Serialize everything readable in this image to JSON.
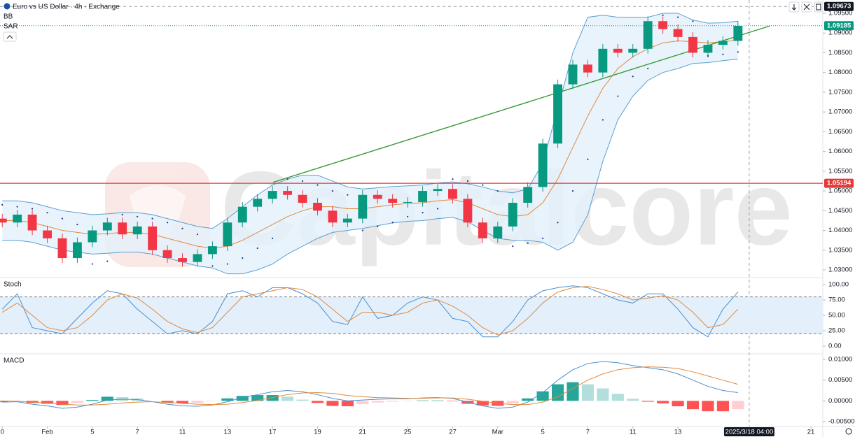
{
  "watermark": "Capitalcore",
  "chart_data": [
    {
      "type": "candlestick",
      "title": "Euro vs US Dollar · 4h · Exchange",
      "indicators": [
        "BB",
        "SAR"
      ],
      "x": [
        0,
        1,
        2,
        3,
        4,
        5,
        6,
        7,
        8,
        9,
        10,
        11,
        12,
        13,
        14,
        15,
        16,
        17,
        18,
        19,
        20,
        21,
        22,
        23,
        24,
        25,
        26,
        27,
        28,
        29,
        30,
        31,
        32,
        33,
        34,
        35,
        36,
        37,
        38,
        39,
        40,
        41,
        42,
        43,
        44,
        45,
        46,
        47,
        48,
        49
      ],
      "open": [
        1.043,
        1.042,
        1.044,
        1.04,
        1.038,
        1.033,
        1.037,
        1.04,
        1.042,
        1.039,
        1.041,
        1.035,
        1.033,
        1.032,
        1.034,
        1.036,
        1.042,
        1.046,
        1.048,
        1.05,
        1.049,
        1.047,
        1.045,
        1.042,
        1.043,
        1.049,
        1.048,
        1.047,
        1.0472,
        1.05,
        1.0505,
        1.048,
        1.042,
        1.038,
        1.041,
        1.047,
        1.051,
        1.062,
        1.077,
        1.082,
        1.08,
        1.086,
        1.085,
        1.086,
        1.093,
        1.091,
        1.089,
        1.085,
        1.087,
        1.088
      ],
      "high": [
        1.0442,
        1.0452,
        1.0452,
        1.0412,
        1.0392,
        1.0382,
        1.0412,
        1.0432,
        1.0432,
        1.0422,
        1.0422,
        1.0362,
        1.0342,
        1.0352,
        1.0372,
        1.0432,
        1.0472,
        1.0492,
        1.0512,
        1.0512,
        1.0502,
        1.0482,
        1.0462,
        1.0442,
        1.0502,
        1.0502,
        1.0492,
        1.0484,
        1.0512,
        1.0517,
        1.0517,
        1.0492,
        1.0432,
        1.0422,
        1.0482,
        1.0522,
        1.0632,
        1.0782,
        1.0832,
        1.0832,
        1.0872,
        1.0872,
        1.0872,
        1.0942,
        1.0942,
        1.0922,
        1.0902,
        1.0882,
        1.0892,
        1.093
      ],
      "low": [
        1.0408,
        1.0408,
        1.0388,
        1.0368,
        1.0318,
        1.0318,
        1.0358,
        1.0388,
        1.0378,
        1.0378,
        1.0338,
        1.0318,
        1.0308,
        1.0308,
        1.0328,
        1.0348,
        1.0408,
        1.0448,
        1.0468,
        1.0478,
        1.0458,
        1.0438,
        1.0408,
        1.0408,
        1.0418,
        1.0468,
        1.0458,
        1.0458,
        1.046,
        1.0488,
        1.0468,
        1.0408,
        1.0368,
        1.0368,
        1.0398,
        1.0458,
        1.0498,
        1.0608,
        1.0758,
        1.0788,
        1.0788,
        1.0838,
        1.0838,
        1.0848,
        1.0898,
        1.0878,
        1.0838,
        1.0838,
        1.0858,
        1.0868
      ],
      "close": [
        1.042,
        1.044,
        1.04,
        1.038,
        1.033,
        1.037,
        1.04,
        1.042,
        1.039,
        1.041,
        1.035,
        1.033,
        1.032,
        1.034,
        1.036,
        1.042,
        1.046,
        1.048,
        1.05,
        1.049,
        1.047,
        1.045,
        1.042,
        1.043,
        1.049,
        1.048,
        1.047,
        1.0472,
        1.05,
        1.0505,
        1.048,
        1.042,
        1.038,
        1.041,
        1.047,
        1.051,
        1.062,
        1.077,
        1.082,
        1.08,
        1.086,
        1.085,
        1.086,
        1.093,
        1.091,
        1.089,
        1.085,
        1.087,
        1.088,
        1.0918
      ],
      "up_color": "#089981",
      "down_color": "#f23645",
      "bollinger": {
        "upper": [
          1.0475,
          1.0475,
          1.047,
          1.046,
          1.045,
          1.0445,
          1.044,
          1.0442,
          1.0445,
          1.0445,
          1.044,
          1.043,
          1.042,
          1.041,
          1.0405,
          1.043,
          1.046,
          1.049,
          1.0515,
          1.053,
          1.054,
          1.054,
          1.0525,
          1.051,
          1.0505,
          1.0508,
          1.0511,
          1.0513,
          1.0515,
          1.052,
          1.0523,
          1.0518,
          1.051,
          1.05,
          1.0495,
          1.0505,
          1.057,
          1.071,
          1.085,
          1.094,
          1.0945,
          1.094,
          1.094,
          1.094,
          1.095,
          1.095,
          1.0933,
          1.0925,
          1.0926,
          1.093
        ],
        "middle": [
          1.0425,
          1.0425,
          1.042,
          1.041,
          1.04,
          1.0395,
          1.039,
          1.0392,
          1.0395,
          1.0395,
          1.039,
          1.038,
          1.037,
          1.036,
          1.0355,
          1.036,
          1.0375,
          1.0395,
          1.0415,
          1.0435,
          1.045,
          1.046,
          1.046,
          1.0455,
          1.0455,
          1.046,
          1.0465,
          1.0468,
          1.047,
          1.0475,
          1.0478,
          1.047,
          1.0455,
          1.044,
          1.0435,
          1.044,
          1.047,
          1.053,
          1.061,
          1.069,
          1.076,
          1.081,
          1.084,
          1.086,
          1.0875,
          1.088,
          1.0878,
          1.0875,
          1.0878,
          1.0882
        ],
        "lower": [
          1.0375,
          1.0375,
          1.037,
          1.036,
          1.035,
          1.0345,
          1.034,
          1.0342,
          1.0345,
          1.0345,
          1.034,
          1.033,
          1.032,
          1.031,
          1.0305,
          1.029,
          1.029,
          1.03,
          1.0315,
          1.034,
          1.036,
          1.038,
          1.0395,
          1.04,
          1.0405,
          1.0412,
          1.0419,
          1.0423,
          1.0425,
          1.043,
          1.0433,
          1.0422,
          1.04,
          1.038,
          1.0375,
          1.0375,
          1.037,
          1.035,
          1.037,
          1.044,
          1.0575,
          1.068,
          1.074,
          1.078,
          1.08,
          1.081,
          1.0823,
          1.0825,
          1.083,
          1.0834
        ],
        "band_color": "#5a9fd4",
        "middle_color": "#e08a3c",
        "fill": "#e3f0fb"
      },
      "sar": [
        1.0465,
        1.046,
        1.0455,
        1.0445,
        1.043,
        1.0415,
        1.0315,
        1.0322,
        1.044,
        1.0435,
        1.043,
        1.042,
        1.0405,
        1.039,
        1.031,
        1.0315,
        1.033,
        1.0355,
        1.038,
        1.053,
        1.0525,
        1.0515,
        1.05,
        1.049,
        1.04,
        1.041,
        1.042,
        1.0435,
        1.0445,
        1.0455,
        1.053,
        1.0525,
        1.0515,
        1.05,
        1.036,
        1.0368,
        1.038,
        1.042,
        1.05,
        1.058,
        1.068,
        1.074,
        1.079,
        1.081,
        1.0945,
        1.094,
        1.093,
        1.0842,
        1.0846,
        1.0852
      ],
      "sar_color": "#1e3a8a",
      "price_labels": [
        {
          "value": 1.09673,
          "label": "1.09673",
          "color": "#131722",
          "line_color": "#9aa0a6",
          "line": "dashed"
        },
        {
          "value": 1.09185,
          "label": "1.09185",
          "color": "#089981",
          "line_color": "#089981",
          "line": "dotted"
        },
        {
          "value": 1.05194,
          "label": "1.05194",
          "color": "#e53935",
          "line_color": "#e53935",
          "line": "solid"
        }
      ],
      "trendline": {
        "x": [
          18.04,
          51.14
        ],
        "y": [
          1.0522,
          1.09181
        ],
        "color": "#3a9a3a"
      },
      "crosshair": {
        "x": 49.75,
        "label": "2025/3/18  04:00"
      },
      "xlim": [
        -0.15,
        54.65
      ],
      "xticks": [
        {
          "value": 0,
          "label": "0"
        },
        {
          "value": 3,
          "label": "Feb"
        },
        {
          "value": 6,
          "label": "5"
        },
        {
          "value": 9,
          "label": "7"
        },
        {
          "value": 12,
          "label": "11"
        },
        {
          "value": 15,
          "label": "13"
        },
        {
          "value": 18,
          "label": "17"
        },
        {
          "value": 21,
          "label": "19"
        },
        {
          "value": 24,
          "label": "21"
        },
        {
          "value": 27,
          "label": "25"
        },
        {
          "value": 30,
          "label": "27"
        },
        {
          "value": 33,
          "label": "Mar"
        },
        {
          "value": 36,
          "label": "5"
        },
        {
          "value": 39,
          "label": "7"
        },
        {
          "value": 42,
          "label": "11"
        },
        {
          "value": 45,
          "label": "13"
        },
        {
          "value": 53.86,
          "label": "21"
        }
      ],
      "ylim": [
        1.02841,
        1.09836
      ],
      "yticks": [
        {
          "value": 1.095,
          "label": "1.09500"
        },
        {
          "value": 1.09,
          "label": "1.09000"
        },
        {
          "value": 1.085,
          "label": "1.08500"
        },
        {
          "value": 1.08,
          "label": "1.08000"
        },
        {
          "value": 1.075,
          "label": "1.07500"
        },
        {
          "value": 1.07,
          "label": "1.07000"
        },
        {
          "value": 1.065,
          "label": "1.06500"
        },
        {
          "value": 1.06,
          "label": "1.06000"
        },
        {
          "value": 1.055,
          "label": "1.05500"
        },
        {
          "value": 1.05,
          "label": "1.05000"
        },
        {
          "value": 1.045,
          "label": "1.04500"
        },
        {
          "value": 1.04,
          "label": "1.04000"
        },
        {
          "value": 1.035,
          "label": "1.03500"
        },
        {
          "value": 1.03,
          "label": "1.03000"
        }
      ]
    },
    {
      "type": "line",
      "title": "Stoch",
      "series": [
        {
          "color": "#4a8fd0",
          "values": [
            60,
            85,
            30,
            25,
            20,
            45,
            70,
            90,
            85,
            60,
            40,
            20,
            25,
            20,
            40,
            85,
            90,
            80,
            95,
            95,
            85,
            70,
            40,
            35,
            80,
            45,
            50,
            70,
            80,
            75,
            45,
            40,
            15,
            15,
            40,
            75,
            90,
            95,
            98,
            95,
            85,
            75,
            70,
            85,
            85,
            60,
            30,
            15,
            60,
            88
          ]
        },
        {
          "color": "#e08a3c",
          "values": [
            55,
            70,
            50,
            30,
            25,
            30,
            50,
            75,
            85,
            78,
            60,
            40,
            28,
            22,
            30,
            55,
            80,
            85,
            90,
            95,
            92,
            80,
            60,
            40,
            55,
            55,
            50,
            55,
            70,
            75,
            65,
            50,
            30,
            18,
            25,
            45,
            70,
            88,
            95,
            97,
            92,
            85,
            75,
            78,
            82,
            75,
            55,
            30,
            35,
            60
          ]
        }
      ],
      "band": [
        20,
        80
      ],
      "band_color": "#e3f0fb",
      "ylim": [
        -11.4,
        108
      ],
      "yticks": [
        {
          "value": 100,
          "label": "100.00"
        },
        {
          "value": 75,
          "label": "75.00"
        },
        {
          "value": 50,
          "label": "50.00"
        },
        {
          "value": 25,
          "label": "25.00"
        },
        {
          "value": 0,
          "label": "0.00"
        }
      ]
    },
    {
      "type": "line",
      "title": "MACD",
      "series": [
        {
          "type": "bar",
          "colors": [
            "#26a69a",
            "#b2dfdb",
            "#ff5252",
            "#ffcdd2"
          ],
          "values": [
            -0.0003,
            -0.0001,
            -0.0005,
            -0.0007,
            -0.001,
            -0.0005,
            0.0002,
            0.001,
            0.0009,
            0.0006,
            0.0,
            -0.0004,
            -0.0006,
            -0.0005,
            -0.0001,
            0.0006,
            0.0012,
            0.0014,
            0.0014,
            0.001,
            0.0003,
            -0.0005,
            -0.0012,
            -0.0013,
            -0.0008,
            -0.0004,
            -0.0002,
            -0.0001,
            0.0001,
            0.0001,
            -0.0001,
            -0.0007,
            -0.0011,
            -0.0012,
            -0.0006,
            0.0006,
            0.0023,
            0.004,
            0.0045,
            0.004,
            0.003,
            0.0017,
            0.0005,
            -0.0002,
            -0.0006,
            -0.0013,
            -0.002,
            -0.0025,
            -0.0025,
            -0.002
          ]
        },
        {
          "color": "#4a8fd0",
          "values": [
            -0.0003,
            -0.0002,
            -0.0008,
            -0.0012,
            -0.0018,
            -0.0015,
            -0.0008,
            0.0002,
            0.0004,
            0.0003,
            -0.0002,
            -0.0008,
            -0.0012,
            -0.0013,
            -0.001,
            -0.0002,
            0.0008,
            0.0015,
            0.0022,
            0.0025,
            0.0022,
            0.0015,
            0.0006,
            0.0,
            0.0002,
            0.0004,
            0.0005,
            0.0005,
            0.0007,
            0.0008,
            0.0006,
            -0.0003,
            -0.0012,
            -0.0018,
            -0.0015,
            -0.0003,
            0.002,
            0.005,
            0.0075,
            0.009,
            0.0095,
            0.0092,
            0.0085,
            0.008,
            0.0075,
            0.0065,
            0.005,
            0.0035,
            0.0025,
            0.002
          ]
        },
        {
          "color": "#e08a3c",
          "values": [
            0.0,
            -0.0001,
            -0.0003,
            -0.0005,
            -0.0008,
            -0.001,
            -0.001,
            -0.0008,
            -0.0005,
            -0.0003,
            -0.0002,
            -0.0004,
            -0.0006,
            -0.0008,
            -0.0009,
            -0.0008,
            -0.0004,
            0.0001,
            0.0008,
            0.0015,
            0.0019,
            0.002,
            0.0018,
            0.0013,
            0.001,
            0.0008,
            0.0007,
            0.0006,
            0.0006,
            0.0007,
            0.0007,
            0.0004,
            -0.0001,
            -0.0006,
            -0.0009,
            -0.0009,
            -0.0003,
            0.001,
            0.003,
            0.005,
            0.0065,
            0.0075,
            0.008,
            0.0082,
            0.0081,
            0.0078,
            0.007,
            0.006,
            0.005,
            0.004
          ]
        }
      ],
      "ylim": [
        -0.00618,
        0.01118
      ],
      "yticks": [
        {
          "value": 0.01,
          "label": "0.01000"
        },
        {
          "value": 0.005,
          "label": "0.00500"
        },
        {
          "value": 0,
          "label": "0.00000"
        },
        {
          "value": -0.005,
          "label": "-0.00500"
        }
      ]
    }
  ]
}
